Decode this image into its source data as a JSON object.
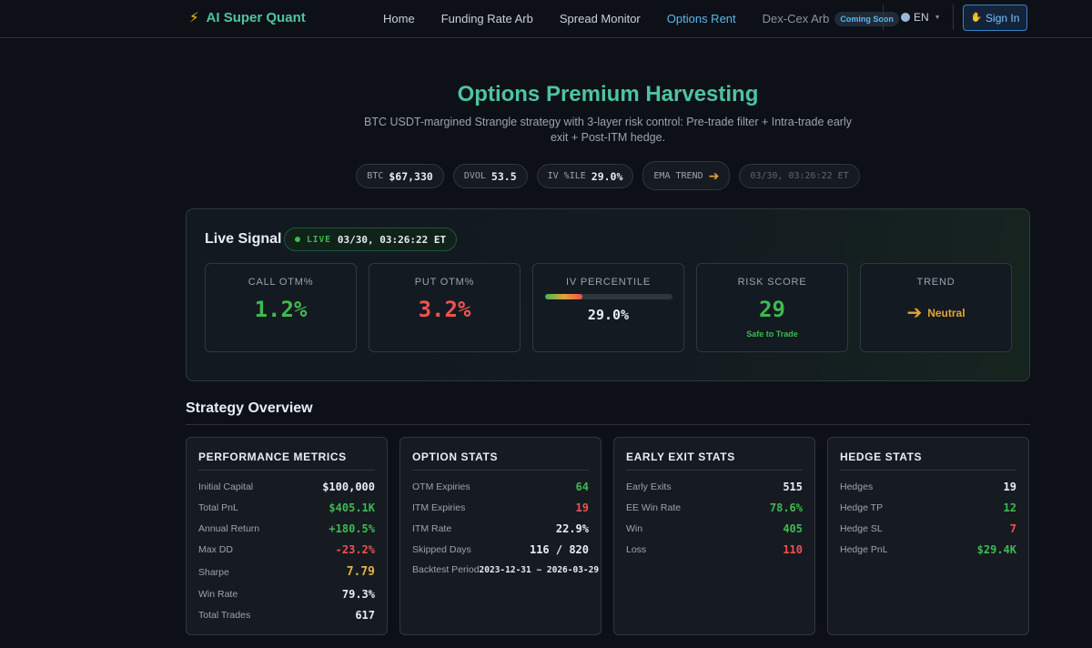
{
  "brand": {
    "icon": "lightning-icon",
    "name": "AI Super Quant"
  },
  "nav": {
    "links": [
      "Home",
      "Funding Rate Arb",
      "Spread Monitor",
      "Options Rent"
    ],
    "active": "Options Rent",
    "disabled_link": "Dex-Cex Arb",
    "coming_soon": "Coming Soon",
    "language": "EN",
    "sign_in": "Sign In"
  },
  "hero": {
    "title": "Options Premium Harvesting",
    "subtitle": "BTC USDT-margined Strangle strategy with 3-layer risk control: Pre-trade filter + Intra-trade early exit + Post-ITM hedge."
  },
  "ticker": {
    "btc_label": "BTC",
    "btc_value": "$67,330",
    "dvol_label": "DVOL",
    "dvol_value": "53.5",
    "iv_label": "IV %ILE",
    "iv_value": "29.0%",
    "ema_label": "EMA TREND",
    "ema_icon": "arrow-right-icon",
    "timestamp": "03/30, 03:26:22 ET"
  },
  "live_signal": {
    "title": "Live Signal",
    "badge": "LIVE",
    "time": "03/30, 03:26:22 ET",
    "call_otm": {
      "label": "CALL OTM%",
      "value": "1.2%"
    },
    "put_otm": {
      "label": "PUT OTM%",
      "value": "3.2%"
    },
    "iv_percentile": {
      "label": "IV PERCENTILE",
      "value": "29.0%",
      "level": 0.29
    },
    "risk_score": {
      "label": "RISK SCORE",
      "value": "29",
      "status": "Safe to Trade"
    },
    "trend": {
      "label": "TREND",
      "value": "Neutral",
      "icon": "arrow-right-icon"
    }
  },
  "overview": {
    "title": "Strategy Overview",
    "performance": {
      "title": "PERFORMANCE METRICS",
      "rows": [
        {
          "label": "Initial Capital",
          "value": "$100,000"
        },
        {
          "label": "Total PnL",
          "value": "$405.1K"
        },
        {
          "label": "Annual Return",
          "value": "+180.5%"
        },
        {
          "label": "Max DD",
          "value": "-23.2%"
        },
        {
          "label": "Sharpe",
          "value": "7.79"
        },
        {
          "label": "Win Rate",
          "value": "79.3%"
        },
        {
          "label": "Total Trades",
          "value": "617"
        }
      ]
    },
    "options": {
      "title": "OPTION STATS",
      "rows": [
        {
          "label": "OTM Expiries",
          "value": "64"
        },
        {
          "label": "ITM Expiries",
          "value": "19"
        },
        {
          "label": "ITM Rate",
          "value": "22.9%"
        },
        {
          "label": "Skipped Days",
          "value": "116 / 820"
        },
        {
          "label": "Backtest Period",
          "value": "2023-12-31 ~ 2026-03-29"
        }
      ]
    },
    "early_exit": {
      "title": "EARLY EXIT STATS",
      "rows": [
        {
          "label": "Early Exits",
          "value": "515"
        },
        {
          "label": "EE Win Rate",
          "value": "78.6%"
        },
        {
          "label": "Win",
          "value": "405"
        },
        {
          "label": "Loss",
          "value": "110"
        }
      ]
    },
    "hedge": {
      "title": "HEDGE STATS",
      "rows": [
        {
          "label": "Hedges",
          "value": "19"
        },
        {
          "label": "Hedge TP",
          "value": "12"
        },
        {
          "label": "Hedge SL",
          "value": "7"
        },
        {
          "label": "Hedge PnL",
          "value": "$29.4K"
        }
      ]
    }
  },
  "colors": {
    "brand": "#4fc3a1",
    "accent": "#58b8f0",
    "positive": "#3fb950",
    "negative": "#f0524d",
    "warning": "#e3a33a",
    "background": "#0d1117"
  }
}
